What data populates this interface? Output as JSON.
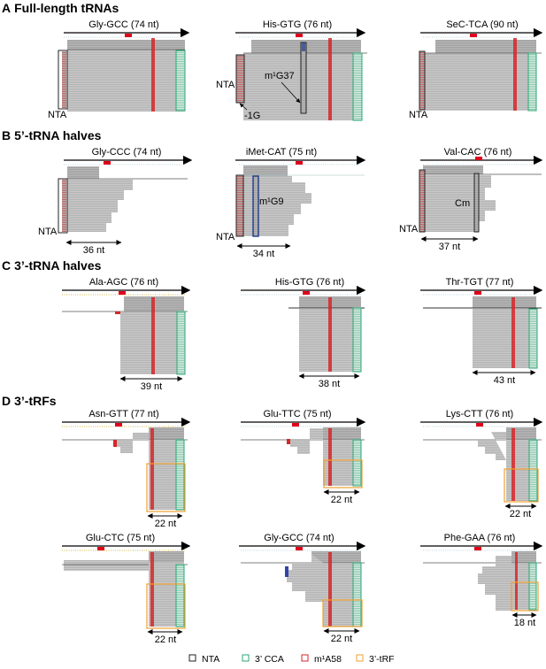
{
  "sections": [
    {
      "letter": "A",
      "title": "Full-length tRNAs"
    },
    {
      "letter": "B",
      "title": "5’-tRNA halves"
    },
    {
      "letter": "C",
      "title": "3’-tRNA halves"
    },
    {
      "letter": "D",
      "title": "3’-tRFs"
    }
  ],
  "panels": [
    {
      "title": "Gly-GCC (74 nt)",
      "notes": [
        "NTA"
      ]
    },
    {
      "title": "His-GTG (76 nt)",
      "notes": [
        "NTA",
        "m¹G37",
        "-1G"
      ]
    },
    {
      "title": "SeC-TCA (90 nt)",
      "notes": [
        "NTA"
      ]
    },
    {
      "title": "Gly-CCC (74 nt)",
      "notes": [
        "NTA"
      ],
      "length": "36 nt"
    },
    {
      "title": "iMet-CAT (75 nt)",
      "notes": [
        "NTA",
        "m¹G9"
      ],
      "length": "34 nt"
    },
    {
      "title": "Val-CAC (76 nt)",
      "notes": [
        "NTA",
        "Cm"
      ],
      "length": "37 nt"
    },
    {
      "title": "Ala-AGC (76 nt)",
      "length": "39 nt"
    },
    {
      "title": "His-GTG (76 nt)",
      "length": "38 nt"
    },
    {
      "title": "Thr-TGT (77 nt)",
      "length": "43 nt"
    },
    {
      "title": "Asn-GTT (77 nt)",
      "length": "22 nt"
    },
    {
      "title": "Glu-TTC (75 nt)",
      "length": "22 nt"
    },
    {
      "title": "Lys-CTT (76 nt)",
      "length": "22 nt"
    },
    {
      "title": "Glu-CTC (75 nt)",
      "length": "22 nt"
    },
    {
      "title": "Gly-GCC (74 nt)",
      "length": "22 nt"
    },
    {
      "title": "Phe-GAA (76 nt)",
      "length": "18 nt"
    }
  ],
  "legend": [
    {
      "label": "NTA",
      "color": "#222222"
    },
    {
      "label": "3’ CCA",
      "color": "#2aa876"
    },
    {
      "label": "m¹A58",
      "color": "#d62728"
    },
    {
      "label": "3’-tRF",
      "color": "#f0a030"
    }
  ],
  "colors": {
    "reads": "#c4c4c4",
    "m1A": "#d62728",
    "cca": "#2aa876",
    "nta": "#222222",
    "trf": "#f0a030",
    "m1G": "#1f3a8a",
    "header": "#e0001b"
  }
}
